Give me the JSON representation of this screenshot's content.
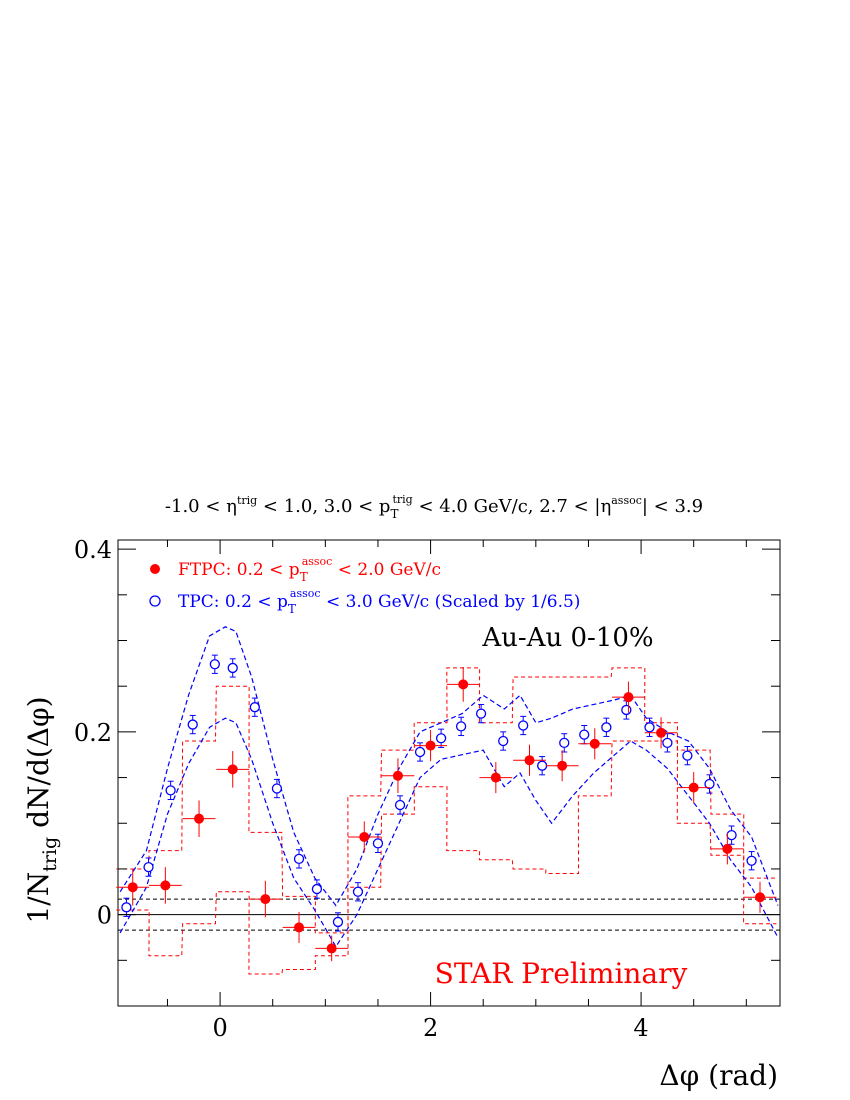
{
  "chart_data": {
    "type": "scatter",
    "title": {
      "eta_trig_pre": "-1.0 < η",
      "eta_trig_sup": "trig",
      "eta_trig_post": " < 1.0, 3.0 < p",
      "pt_sub": "T",
      "pt_sup": "trig",
      "pt_post": " < 4.0 GeV/c, 2.7 < |η",
      "eta_assoc_sup": "assoc",
      "eta_assoc_post": "| < 3.9"
    },
    "xlabel": "Δφ (rad)",
    "ylabel": {
      "pre": "1/N",
      "sub": "trig",
      "post": " dN/d(Δφ)"
    },
    "xlim": [
      -0.97,
      5.32
    ],
    "ylim": [
      -0.1,
      0.41
    ],
    "x_ticks": [
      "0",
      "2",
      "4"
    ],
    "x_tick_values": [
      0,
      2,
      4
    ],
    "y_ticks": [
      "0",
      "0.2",
      "0.4"
    ],
    "y_tick_values": [
      0,
      0.2,
      0.4
    ],
    "annotation": "Au-Au 0-10%",
    "watermark": "STAR Preliminary",
    "reference_lines": {
      "zero": 0,
      "band": [
        -0.017,
        0.017
      ]
    },
    "legend": {
      "ftpc": {
        "pre": "FTPC: 0.2 < p",
        "sub": "T",
        "sup": "assoc",
        "post": " < 2.0 GeV/c"
      },
      "tpc": {
        "pre": "TPC: 0.2 < p",
        "sub": "T",
        "sup": "assoc",
        "post": " < 3.0 GeV/c (Scaled by 1/6.5)"
      }
    },
    "colors": {
      "ftpc": "#ff0000",
      "tpc": "#0000ff",
      "axis": "#000000"
    },
    "series": [
      {
        "name": "FTPC",
        "marker": "filled-circle",
        "x": [
          -0.83,
          -0.52,
          -0.2,
          0.12,
          0.43,
          0.75,
          1.06,
          1.37,
          1.69,
          2.0,
          2.31,
          2.62,
          2.94,
          3.25,
          3.56,
          3.88,
          4.19,
          4.5,
          4.82,
          5.13
        ],
        "y": [
          0.03,
          0.032,
          0.105,
          0.159,
          0.017,
          -0.014,
          -0.037,
          0.085,
          0.152,
          0.185,
          0.252,
          0.15,
          0.169,
          0.163,
          0.187,
          0.238,
          0.199,
          0.139,
          0.072,
          0.019
        ],
        "yerr": [
          0.02,
          0.02,
          0.02,
          0.02,
          0.02,
          0.017,
          0.014,
          0.017,
          0.019,
          0.017,
          0.019,
          0.017,
          0.017,
          0.017,
          0.017,
          0.017,
          0.017,
          0.017,
          0.017,
          0.017
        ],
        "sys_low": [
          0.005,
          -0.045,
          -0.01,
          0.025,
          -0.065,
          -0.06,
          -0.045,
          0.03,
          0.11,
          0.14,
          0.07,
          0.06,
          0.05,
          0.045,
          0.13,
          0.19,
          0.19,
          0.1,
          0.065,
          -0.01
        ],
        "sys_high": [
          0.05,
          0.07,
          0.19,
          0.25,
          0.09,
          0.02,
          -0.02,
          0.13,
          0.18,
          0.21,
          0.27,
          0.21,
          0.26,
          0.26,
          0.26,
          0.27,
          0.21,
          0.18,
          0.11,
          0.04
        ]
      },
      {
        "name": "TPC",
        "marker": "open-circle",
        "x": [
          -0.89,
          -0.68,
          -0.47,
          -0.26,
          -0.05,
          0.12,
          0.33,
          0.54,
          0.75,
          0.92,
          1.12,
          1.31,
          1.5,
          1.71,
          1.9,
          2.1,
          2.29,
          2.48,
          2.69,
          2.88,
          3.06,
          3.27,
          3.46,
          3.67,
          3.86,
          4.08,
          4.25,
          4.44,
          4.65,
          4.86,
          5.05
        ],
        "y": [
          0.008,
          0.052,
          0.136,
          0.208,
          0.274,
          0.27,
          0.227,
          0.138,
          0.061,
          0.028,
          -0.008,
          0.025,
          0.078,
          0.12,
          0.178,
          0.193,
          0.206,
          0.22,
          0.19,
          0.207,
          0.163,
          0.188,
          0.197,
          0.205,
          0.224,
          0.205,
          0.188,
          0.174,
          0.143,
          0.087,
          0.059
        ],
        "yerr": [
          0.01,
          0.01,
          0.01,
          0.01,
          0.01,
          0.01,
          0.01,
          0.01,
          0.01,
          0.01,
          0.01,
          0.01,
          0.01,
          0.01,
          0.01,
          0.01,
          0.01,
          0.01,
          0.01,
          0.01,
          0.01,
          0.01,
          0.01,
          0.01,
          0.01,
          0.01,
          0.01,
          0.01,
          0.01,
          0.01,
          0.01
        ]
      }
    ],
    "tpc_band": {
      "x": [
        -0.95,
        -0.7,
        -0.5,
        -0.3,
        -0.1,
        0.05,
        0.15,
        0.3,
        0.5,
        0.7,
        0.9,
        1.1,
        1.3,
        1.5,
        1.7,
        1.9,
        2.1,
        2.3,
        2.5,
        2.7,
        2.85,
        3.0,
        3.15,
        3.35,
        3.55,
        3.75,
        3.9,
        4.05,
        4.25,
        4.45,
        4.65,
        4.85,
        5.05,
        5.3
      ],
      "upper": [
        0.025,
        0.07,
        0.16,
        0.24,
        0.305,
        0.315,
        0.31,
        0.26,
        0.17,
        0.09,
        0.04,
        0.01,
        0.05,
        0.11,
        0.16,
        0.2,
        0.21,
        0.22,
        0.24,
        0.225,
        0.24,
        0.21,
        0.215,
        0.225,
        0.23,
        0.235,
        0.24,
        0.215,
        0.2,
        0.19,
        0.16,
        0.115,
        0.085,
        0.01
      ],
      "lower": [
        -0.02,
        0.03,
        0.11,
        0.165,
        0.205,
        0.215,
        0.21,
        0.17,
        0.1,
        0.04,
        0.005,
        -0.035,
        0.0,
        0.05,
        0.1,
        0.15,
        0.17,
        0.175,
        0.18,
        0.14,
        0.155,
        0.125,
        0.1,
        0.13,
        0.155,
        0.175,
        0.19,
        0.18,
        0.16,
        0.13,
        0.1,
        0.06,
        0.03,
        -0.025
      ]
    }
  }
}
